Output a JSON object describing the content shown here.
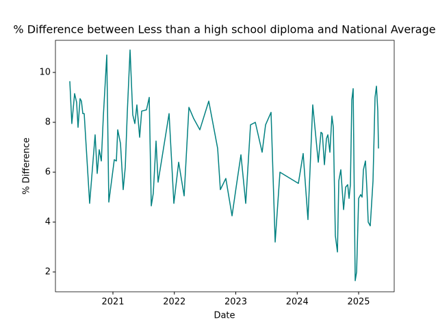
{
  "chart_data": {
    "type": "line",
    "title": "% Difference between Less than a high school diploma and National Average",
    "xlabel": "Date",
    "ylabel": "% Difference",
    "x": [
      2020.298,
      2020.331,
      2020.376,
      2020.409,
      2020.432,
      2020.465,
      2020.487,
      2020.51,
      2020.532,
      2020.621,
      2020.71,
      2020.744,
      2020.777,
      2020.811,
      2020.844,
      2020.9,
      2020.933,
      2021.022,
      2021.056,
      2021.078,
      2021.123,
      2021.167,
      2021.201,
      2021.234,
      2021.279,
      2021.323,
      2021.357,
      2021.39,
      2021.435,
      2021.468,
      2021.546,
      2021.591,
      2021.624,
      2021.657,
      2021.702,
      2021.735,
      2021.914,
      2021.992,
      2022.07,
      2022.159,
      2022.237,
      2022.315,
      2022.415,
      2022.56,
      2022.705,
      2022.749,
      2022.838,
      2022.939,
      2023.006,
      2023.084,
      2023.162,
      2023.24,
      2023.318,
      2023.429,
      2023.485,
      2023.574,
      2023.641,
      2023.719,
      2024.019,
      2024.097,
      2024.175,
      2024.253,
      2024.343,
      2024.387,
      2024.409,
      2024.443,
      2024.476,
      2024.499,
      2024.532,
      2024.565,
      2024.588,
      2024.621,
      2024.655,
      2024.677,
      2024.71,
      2024.755,
      2024.788,
      2024.822,
      2024.844,
      2024.866,
      2024.889,
      2024.911,
      2024.944,
      2024.967,
      2025.0,
      2025.033,
      2025.056,
      2025.078,
      2025.111,
      2025.134,
      2025.156,
      2025.189,
      2025.234,
      2025.267,
      2025.29,
      2025.312,
      2025.323
    ],
    "series": [
      {
        "color": "#008080",
        "values": [
          9.65,
          7.95,
          9.15,
          8.8,
          7.8,
          8.95,
          8.85,
          8.35,
          8.35,
          4.75,
          7.5,
          5.95,
          6.9,
          6.45,
          8.25,
          10.7,
          4.8,
          6.5,
          6.45,
          7.7,
          7.15,
          5.3,
          6.2,
          8.4,
          10.9,
          8.3,
          7.95,
          8.7,
          7.4,
          8.45,
          8.5,
          9.0,
          4.65,
          5.15,
          7.25,
          5.6,
          8.35,
          4.75,
          6.4,
          5.05,
          8.6,
          8.15,
          7.7,
          8.85,
          6.95,
          5.3,
          5.75,
          4.25,
          5.4,
          6.7,
          4.75,
          7.9,
          8.0,
          6.8,
          7.9,
          8.4,
          3.2,
          6.0,
          5.55,
          6.75,
          4.1,
          8.7,
          6.4,
          7.6,
          7.55,
          6.3,
          7.35,
          7.5,
          6.8,
          8.25,
          7.8,
          3.45,
          2.8,
          5.65,
          6.1,
          4.5,
          5.4,
          5.5,
          4.95,
          5.5,
          8.9,
          9.35,
          1.65,
          2.0,
          4.95,
          5.1,
          5.0,
          6.1,
          6.45,
          5.35,
          4.0,
          3.85,
          5.65,
          9.0,
          9.45,
          8.45,
          6.95
        ]
      }
    ],
    "xlim": [
      2020.064,
      2025.579
    ],
    "xticks": [
      2021,
      2022,
      2023,
      2024,
      2025
    ],
    "ylim": [
      1.205,
      11.288
    ],
    "yticks": [
      2,
      4,
      6,
      8,
      10
    ]
  }
}
